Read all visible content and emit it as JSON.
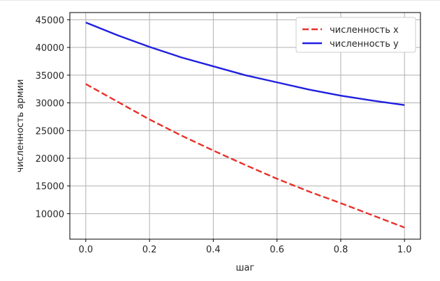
{
  "chart_data": {
    "type": "line",
    "xlabel": "шаг",
    "ylabel": "численность армии",
    "xlim": [
      -0.05,
      1.05
    ],
    "ylim": [
      5400,
      46300
    ],
    "x_ticks": [
      0.0,
      0.2,
      0.4,
      0.6,
      0.8,
      1.0
    ],
    "x_tick_labels": [
      "0.0",
      "0.2",
      "0.4",
      "0.6",
      "0.8",
      "1.0"
    ],
    "y_ticks": [
      10000,
      15000,
      20000,
      25000,
      30000,
      35000,
      40000,
      45000
    ],
    "y_tick_labels": [
      "10000",
      "15000",
      "20000",
      "25000",
      "30000",
      "35000",
      "40000",
      "45000"
    ],
    "grid": true,
    "legend_position": "top-right",
    "series": [
      {
        "name": "численность x",
        "color": "#e8312a",
        "dash": "dashed",
        "x": [
          0.0,
          0.1,
          0.2,
          0.3,
          0.4,
          0.5,
          0.6,
          0.7,
          0.8,
          0.9,
          1.0
        ],
        "values": [
          33400,
          30200,
          27000,
          24100,
          21400,
          18800,
          16300,
          14000,
          11900,
          9700,
          7500
        ]
      },
      {
        "name": "численность y",
        "color": "#1f1fe0",
        "dash": "solid",
        "x": [
          0.0,
          0.1,
          0.2,
          0.3,
          0.4,
          0.5,
          0.6,
          0.7,
          0.8,
          0.9,
          1.0
        ],
        "values": [
          44500,
          42200,
          40100,
          38200,
          36600,
          35000,
          33700,
          32400,
          31300,
          30400,
          29600
        ]
      }
    ]
  }
}
